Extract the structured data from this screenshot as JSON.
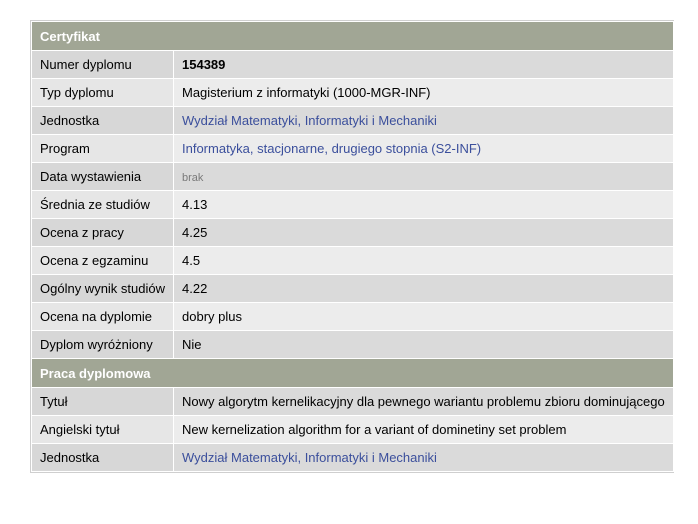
{
  "certificate": {
    "header": "Certyfikat",
    "rows": [
      {
        "label": "Numer dyplomu",
        "value": "154389"
      },
      {
        "label": "Typ dyplomu",
        "value": "Magisterium z informatyki (1000-MGR-INF)"
      },
      {
        "label": "Jednostka",
        "value": "Wydział Matematyki, Informatyki i Mechaniki"
      },
      {
        "label": "Program",
        "value": "Informatyka, stacjonarne, drugiego stopnia (S2-INF)"
      },
      {
        "label": "Data wystawienia",
        "value": "brak"
      },
      {
        "label": "Średnia ze studiów",
        "value": "4.13"
      },
      {
        "label": "Ocena z pracy",
        "value": "4.25"
      },
      {
        "label": "Ocena z egzaminu",
        "value": "4.5"
      },
      {
        "label": "Ogólny wynik studiów",
        "value": "4.22"
      },
      {
        "label": "Ocena na dyplomie",
        "value": "dobry plus"
      },
      {
        "label": "Dyplom wyróżniony",
        "value": "Nie"
      }
    ]
  },
  "thesis": {
    "header": "Praca dyplomowa",
    "rows": [
      {
        "label": "Tytuł",
        "value": "Nowy algorytm kernelikacyjny dla pewnego wariantu problemu zbioru dominującego"
      },
      {
        "label": "Angielski tytuł",
        "value": "New kernelization algorithm for a variant of dominetiny set problem"
      },
      {
        "label": "Jednostka",
        "value": "Wydział Matematyki, Informatyki i Mechaniki"
      }
    ]
  },
  "colors": {
    "section_header": "#a1a695",
    "link": "#3b4f9c"
  }
}
